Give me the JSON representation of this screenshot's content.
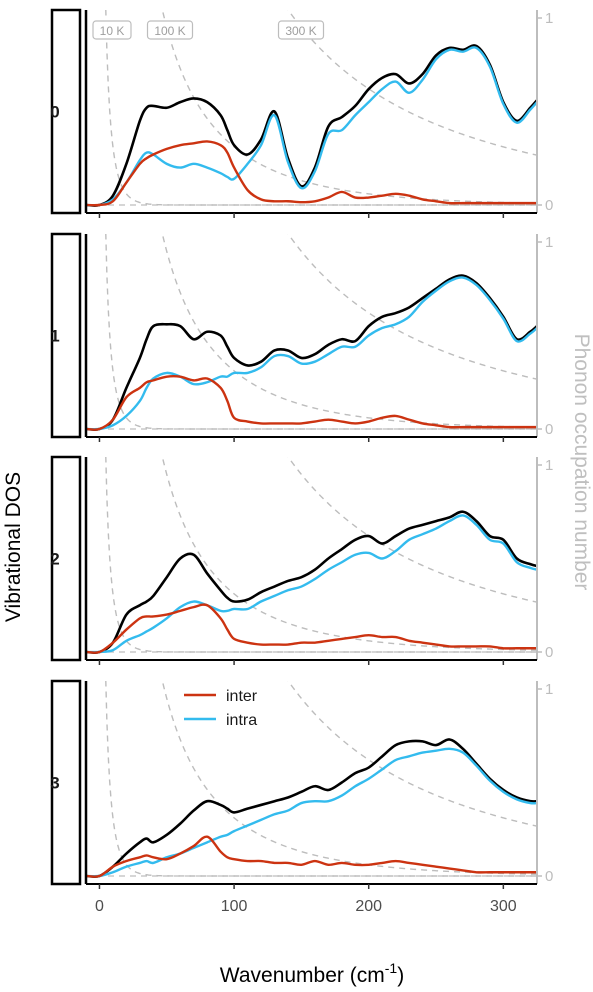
{
  "chart_data": {
    "type": "line",
    "xlabel_main": "Wavenumber (cm",
    "xlabel_sup": "-1",
    "xlabel_end": ")",
    "ylabel": "Vibrational DOS",
    "ylabel_secondary": "Phonon occupation number",
    "xlim": [
      -10,
      325
    ],
    "xticks": [
      0,
      100,
      200,
      300
    ],
    "secondary_yticks": [
      0,
      1
    ],
    "temperatures": [
      {
        "label": "10 K",
        "T": 10
      },
      {
        "label": "100 K",
        "T": 100
      },
      {
        "label": "300 K",
        "T": 300
      }
    ],
    "legend": {
      "entries": [
        {
          "name": "inter",
          "color": "#cc3311"
        },
        {
          "name": "intra",
          "color": "#33bbee"
        }
      ]
    },
    "colors": {
      "total": "#000000",
      "inter": "#cc3311",
      "intra": "#33bbee",
      "occupation": "#bdbdbd"
    },
    "x": [
      -10,
      0,
      10,
      20,
      30,
      35,
      40,
      50,
      60,
      70,
      80,
      90,
      95,
      100,
      110,
      120,
      130,
      140,
      150,
      160,
      170,
      180,
      190,
      200,
      210,
      220,
      230,
      240,
      250,
      260,
      270,
      280,
      290,
      300,
      310,
      320,
      325
    ],
    "panels": [
      {
        "label": "0",
        "total": [
          0,
          0,
          0.05,
          0.22,
          0.45,
          0.52,
          0.53,
          0.52,
          0.55,
          0.57,
          0.55,
          0.48,
          0.4,
          0.32,
          0.27,
          0.35,
          0.5,
          0.25,
          0.1,
          0.2,
          0.42,
          0.47,
          0.53,
          0.62,
          0.68,
          0.7,
          0.65,
          0.7,
          0.8,
          0.84,
          0.83,
          0.85,
          0.75,
          0.55,
          0.45,
          0.52,
          0.56
        ],
        "inter": [
          0,
          0,
          0.02,
          0.12,
          0.22,
          0.25,
          0.27,
          0.3,
          0.32,
          0.33,
          0.34,
          0.32,
          0.28,
          0.2,
          0.08,
          0.03,
          0.02,
          0.02,
          0.015,
          0.02,
          0.04,
          0.07,
          0.04,
          0.04,
          0.05,
          0.06,
          0.05,
          0.03,
          0.02,
          0.01,
          0.01,
          0.01,
          0.01,
          0.01,
          0.01,
          0.01,
          0.01
        ],
        "intra": [
          0,
          0,
          0.03,
          0.12,
          0.24,
          0.28,
          0.27,
          0.22,
          0.2,
          0.22,
          0.2,
          0.17,
          0.15,
          0.14,
          0.22,
          0.32,
          0.48,
          0.23,
          0.09,
          0.18,
          0.38,
          0.4,
          0.48,
          0.55,
          0.62,
          0.66,
          0.6,
          0.67,
          0.78,
          0.83,
          0.82,
          0.84,
          0.74,
          0.54,
          0.44,
          0.51,
          0.55
        ]
      },
      {
        "label": "1",
        "total": [
          0,
          0,
          0.05,
          0.22,
          0.38,
          0.48,
          0.55,
          0.56,
          0.55,
          0.48,
          0.52,
          0.5,
          0.44,
          0.38,
          0.34,
          0.36,
          0.42,
          0.42,
          0.38,
          0.4,
          0.45,
          0.48,
          0.47,
          0.55,
          0.6,
          0.62,
          0.65,
          0.7,
          0.75,
          0.8,
          0.82,
          0.78,
          0.7,
          0.6,
          0.48,
          0.52,
          0.55
        ],
        "inter": [
          0,
          0,
          0.05,
          0.17,
          0.22,
          0.25,
          0.26,
          0.28,
          0.28,
          0.26,
          0.27,
          0.22,
          0.15,
          0.06,
          0.04,
          0.03,
          0.03,
          0.03,
          0.03,
          0.04,
          0.05,
          0.04,
          0.03,
          0.04,
          0.06,
          0.07,
          0.05,
          0.03,
          0.02,
          0.01,
          0.01,
          0.01,
          0.01,
          0.01,
          0.01,
          0.01,
          0.01
        ],
        "intra": [
          0,
          0,
          0.02,
          0.07,
          0.15,
          0.22,
          0.27,
          0.3,
          0.28,
          0.24,
          0.25,
          0.28,
          0.28,
          0.3,
          0.3,
          0.33,
          0.39,
          0.39,
          0.35,
          0.36,
          0.4,
          0.44,
          0.44,
          0.5,
          0.54,
          0.56,
          0.6,
          0.68,
          0.74,
          0.79,
          0.81,
          0.77,
          0.69,
          0.59,
          0.47,
          0.51,
          0.54
        ]
      },
      {
        "label": "2",
        "total": [
          0,
          0,
          0.05,
          0.2,
          0.25,
          0.27,
          0.3,
          0.4,
          0.5,
          0.52,
          0.42,
          0.33,
          0.29,
          0.27,
          0.28,
          0.32,
          0.35,
          0.38,
          0.4,
          0.44,
          0.5,
          0.55,
          0.6,
          0.62,
          0.58,
          0.62,
          0.66,
          0.68,
          0.7,
          0.72,
          0.75,
          0.7,
          0.62,
          0.6,
          0.5,
          0.47,
          0.46
        ],
        "inter": [
          0,
          0,
          0.05,
          0.12,
          0.18,
          0.19,
          0.19,
          0.2,
          0.22,
          0.24,
          0.25,
          0.18,
          0.12,
          0.07,
          0.05,
          0.04,
          0.04,
          0.04,
          0.05,
          0.05,
          0.06,
          0.07,
          0.08,
          0.09,
          0.08,
          0.08,
          0.06,
          0.05,
          0.04,
          0.03,
          0.03,
          0.03,
          0.03,
          0.02,
          0.02,
          0.02,
          0.02
        ],
        "intra": [
          0,
          0,
          0.01,
          0.06,
          0.09,
          0.11,
          0.13,
          0.18,
          0.24,
          0.27,
          0.25,
          0.22,
          0.22,
          0.23,
          0.23,
          0.27,
          0.3,
          0.33,
          0.35,
          0.39,
          0.44,
          0.48,
          0.52,
          0.53,
          0.5,
          0.54,
          0.6,
          0.63,
          0.66,
          0.7,
          0.73,
          0.68,
          0.6,
          0.58,
          0.48,
          0.45,
          0.44
        ]
      },
      {
        "label": "3",
        "total": [
          0,
          0,
          0.05,
          0.12,
          0.18,
          0.2,
          0.18,
          0.22,
          0.28,
          0.35,
          0.4,
          0.38,
          0.36,
          0.34,
          0.36,
          0.38,
          0.4,
          0.42,
          0.45,
          0.48,
          0.46,
          0.5,
          0.55,
          0.58,
          0.64,
          0.7,
          0.72,
          0.72,
          0.7,
          0.73,
          0.68,
          0.6,
          0.52,
          0.46,
          0.42,
          0.4,
          0.4
        ],
        "inter": [
          0,
          0,
          0.05,
          0.08,
          0.1,
          0.11,
          0.1,
          0.09,
          0.12,
          0.16,
          0.21,
          0.13,
          0.1,
          0.09,
          0.08,
          0.08,
          0.07,
          0.07,
          0.06,
          0.08,
          0.06,
          0.07,
          0.06,
          0.06,
          0.07,
          0.08,
          0.07,
          0.06,
          0.05,
          0.04,
          0.03,
          0.02,
          0.02,
          0.02,
          0.02,
          0.02,
          0.02
        ],
        "intra": [
          0,
          0,
          0.02,
          0.05,
          0.07,
          0.08,
          0.07,
          0.1,
          0.12,
          0.15,
          0.18,
          0.21,
          0.22,
          0.24,
          0.27,
          0.3,
          0.33,
          0.35,
          0.39,
          0.4,
          0.4,
          0.43,
          0.48,
          0.52,
          0.57,
          0.62,
          0.64,
          0.66,
          0.67,
          0.68,
          0.66,
          0.59,
          0.51,
          0.45,
          0.41,
          0.39,
          0.39
        ]
      }
    ]
  }
}
